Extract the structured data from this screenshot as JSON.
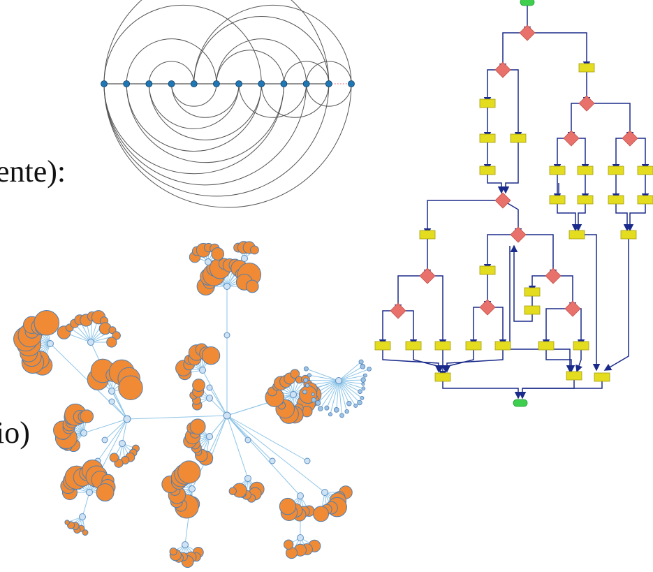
{
  "text_fragments": [
    "ente):",
    "io)"
  ],
  "arc_diagram": {
    "node_count": 12,
    "node_color": "#1f77b4",
    "arc_color": "#555555",
    "dashed_link_color": "#e36a6a",
    "above_links": [
      [
        0,
        10
      ],
      [
        0,
        7
      ],
      [
        1,
        5
      ],
      [
        2,
        4
      ],
      [
        4,
        11
      ],
      [
        4,
        10
      ],
      [
        5,
        9
      ],
      [
        5,
        8
      ],
      [
        8,
        10
      ],
      [
        9,
        11
      ]
    ],
    "below_links": [
      [
        0,
        11
      ],
      [
        0,
        10
      ],
      [
        0,
        9
      ],
      [
        0,
        8
      ],
      [
        1,
        8
      ],
      [
        1,
        7
      ],
      [
        2,
        7
      ],
      [
        2,
        6
      ],
      [
        3,
        6
      ],
      [
        3,
        5
      ],
      [
        6,
        9
      ],
      [
        7,
        10
      ],
      [
        9,
        11
      ]
    ],
    "dashed_links": [
      [
        10,
        11
      ]
    ]
  },
  "radial_tree": {
    "hub_color": "#cfe3f5",
    "leaf_color": "#f08a34",
    "leaf_stroke": "#4f7fb3",
    "edge_color": "#8ec5e8"
  },
  "flowchart": {
    "decision_color": "#e8716b",
    "process_color": "#e4dc1f",
    "terminal_color": "#3ecf4f",
    "edge_color": "#1a2a8a"
  }
}
